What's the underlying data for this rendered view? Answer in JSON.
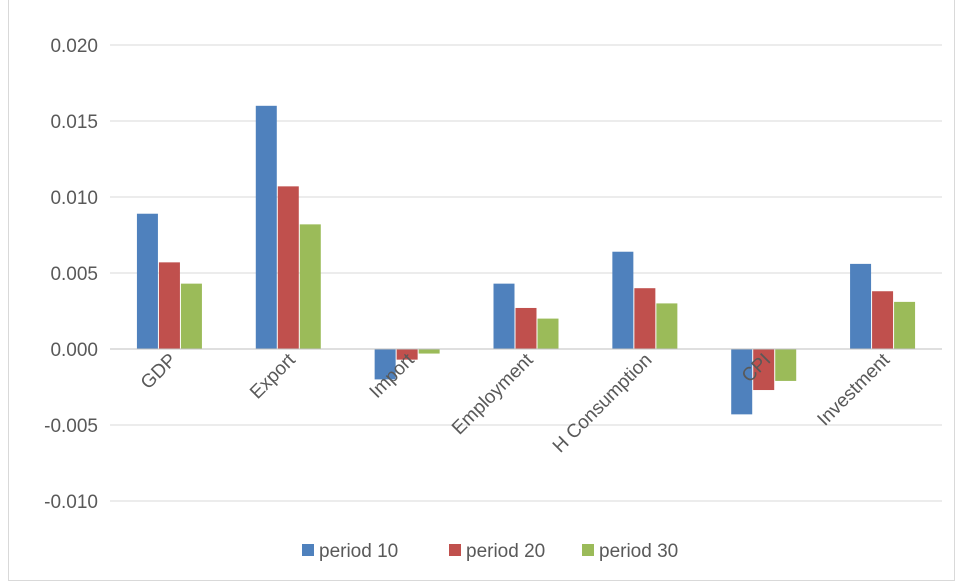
{
  "chart_data": {
    "type": "bar",
    "title": "",
    "xlabel": "",
    "ylabel": "",
    "categories": [
      "GDP",
      "Export",
      "Import",
      "Employment",
      "H Consumption",
      "CPI",
      "Investment"
    ],
    "series": [
      {
        "name": "period 10",
        "color": "#4f81bd",
        "values": [
          0.0089,
          0.016,
          -0.002,
          0.0043,
          0.0064,
          -0.0043,
          0.0056
        ]
      },
      {
        "name": "period 20",
        "color": "#c0504d",
        "values": [
          0.0057,
          0.0107,
          -0.0007,
          0.0027,
          0.004,
          -0.0027,
          0.0038
        ]
      },
      {
        "name": "period 30",
        "color": "#9bbb59",
        "values": [
          0.0043,
          0.0082,
          -0.0003,
          0.002,
          0.003,
          -0.0021,
          0.0031
        ]
      }
    ],
    "ylim": [
      -0.01,
      0.02
    ],
    "yticks": [
      "0.020",
      "0.015",
      "0.010",
      "0.005",
      "0.000",
      "-0.005",
      "-0.010"
    ],
    "grid": true,
    "legend_position": "bottom"
  }
}
